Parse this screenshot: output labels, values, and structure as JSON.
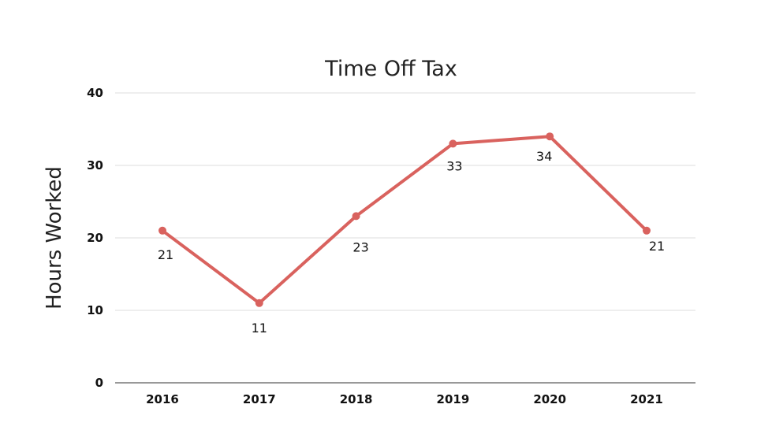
{
  "chart_data": {
    "type": "line",
    "title": "Time Off Tax",
    "xlabel": "",
    "ylabel": "Hours Worked",
    "categories": [
      "2016",
      "2017",
      "2018",
      "2019",
      "2020",
      "2021"
    ],
    "series": [
      {
        "values": [
          21,
          11,
          23,
          33,
          34,
          21
        ],
        "color": "#d9625e",
        "data_labels": [
          "21",
          "11",
          "23",
          "33",
          "34",
          "21"
        ]
      }
    ],
    "ylim": [
      0,
      40
    ],
    "yticks": [
      0,
      10,
      20,
      30,
      40
    ],
    "ytick_labels": [
      "0",
      "10",
      "20",
      "30",
      "40"
    ],
    "grid": true,
    "legend": "none"
  }
}
